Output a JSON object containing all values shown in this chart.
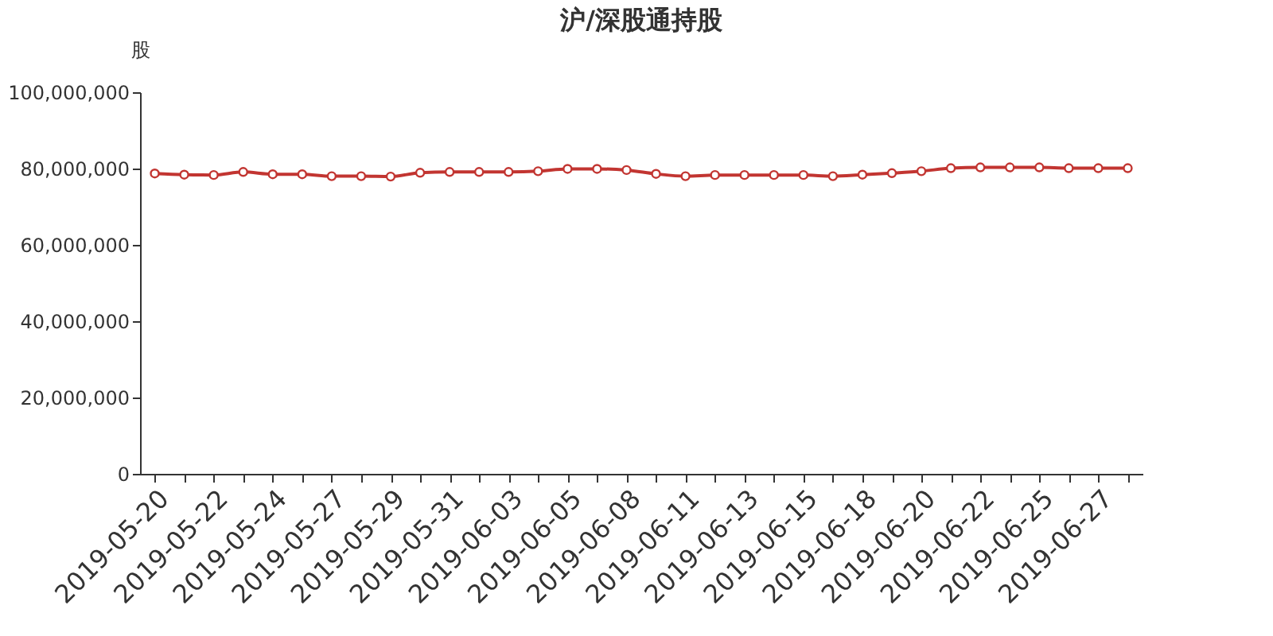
{
  "chart_data": {
    "type": "line",
    "title": "沪/深股通持股",
    "ylabel": "股",
    "categories": [
      "2019-05-20",
      null,
      "2019-05-22",
      null,
      "2019-05-24",
      null,
      "2019-05-27",
      null,
      "2019-05-29",
      null,
      "2019-05-31",
      null,
      "2019-06-03",
      null,
      "2019-06-05",
      null,
      "2019-06-08",
      null,
      "2019-06-11",
      null,
      "2019-06-13",
      null,
      "2019-06-15",
      null,
      "2019-06-18",
      null,
      "2019-06-20",
      null,
      "2019-06-22",
      null,
      "2019-06-25",
      null,
      "2019-06-27",
      null
    ],
    "series": [
      {
        "color": "#c23531",
        "values": [
          78700000.0,
          78400000.0,
          78300000.0,
          79100000.0,
          78500000.0,
          78500000.0,
          78000000.0,
          78000000.0,
          77900000.0,
          78900000.0,
          79100000.0,
          79100000.0,
          79100000.0,
          79300000.0,
          79900000.0,
          79900000.0,
          79600000.0,
          78600000.0,
          78000000.0,
          78300000.0,
          78300000.0,
          78300000.0,
          78300000.0,
          78000000.0,
          78400000.0,
          78800000.0,
          79300000.0,
          80100000.0,
          80300000.0,
          80300000.0,
          80300000.0,
          80100000.0,
          80100000.0,
          80100000.0
        ]
      }
    ],
    "ylim": [
      0,
      100000000
    ],
    "yticks": [
      0,
      {
        "value": 20000000,
        "label": "20,000,000"
      },
      {
        "value": 40000000,
        "label": "40,000,000"
      },
      {
        "value": 60000000,
        "label": "60,000,000"
      },
      {
        "value": 80000000,
        "label": "80,000,000"
      },
      {
        "value": 100000000,
        "label": "100,000,000"
      }
    ],
    "grid": false,
    "legend": false,
    "marker": "circle",
    "line_style": "solid"
  }
}
